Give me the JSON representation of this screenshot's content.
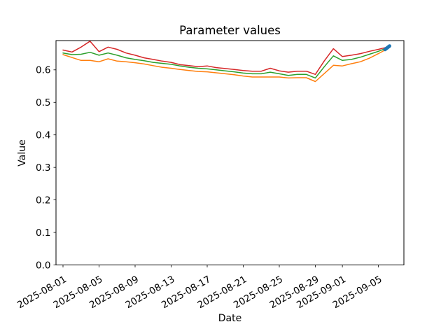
{
  "figure": {
    "background": "#ffffff"
  },
  "chart_data": {
    "type": "line",
    "title": "Parameter values",
    "xlabel": "Date",
    "ylabel": "Value",
    "grid": false,
    "legend": "none",
    "ylim": [
      0.0,
      0.69
    ],
    "y_tick_labels": [
      "0.0",
      "0.1",
      "0.2",
      "0.3",
      "0.4",
      "0.5",
      "0.6"
    ],
    "x_ticks": [
      {
        "day_index": 0,
        "label": "2025-08-01"
      },
      {
        "day_index": 4,
        "label": "2025-08-05"
      },
      {
        "day_index": 8,
        "label": "2025-08-09"
      },
      {
        "day_index": 12,
        "label": "2025-08-13"
      },
      {
        "day_index": 16,
        "label": "2025-08-17"
      },
      {
        "day_index": 20,
        "label": "2025-08-21"
      },
      {
        "day_index": 24,
        "label": "2025-08-25"
      },
      {
        "day_index": 28,
        "label": "2025-08-29"
      },
      {
        "day_index": 31,
        "label": "2025-09-01"
      },
      {
        "day_index": 35,
        "label": "2025-09-05"
      }
    ],
    "x": [
      "2025-08-01",
      "2025-08-02",
      "2025-08-03",
      "2025-08-04",
      "2025-08-05",
      "2025-08-06",
      "2025-08-07",
      "2025-08-08",
      "2025-08-09",
      "2025-08-10",
      "2025-08-11",
      "2025-08-12",
      "2025-08-13",
      "2025-08-14",
      "2025-08-15",
      "2025-08-16",
      "2025-08-17",
      "2025-08-18",
      "2025-08-19",
      "2025-08-20",
      "2025-08-21",
      "2025-08-22",
      "2025-08-23",
      "2025-08-24",
      "2025-08-25",
      "2025-08-26",
      "2025-08-27",
      "2025-08-28",
      "2025-08-29",
      "2025-08-30",
      "2025-08-31",
      "2025-09-01",
      "2025-09-02",
      "2025-09-03",
      "2025-09-04",
      "2025-09-05",
      "2025-09-06"
    ],
    "series": [
      {
        "name": "series-orange",
        "color": "#ff7f0e",
        "values": [
          0.647,
          0.638,
          0.629,
          0.629,
          0.625,
          0.634,
          0.627,
          0.625,
          0.622,
          0.618,
          0.613,
          0.608,
          0.605,
          0.601,
          0.598,
          0.595,
          0.594,
          0.591,
          0.588,
          0.585,
          0.581,
          0.578,
          0.578,
          0.578,
          0.578,
          0.575,
          0.576,
          0.576,
          0.564,
          0.589,
          0.614,
          0.612,
          0.619,
          0.625,
          0.636,
          0.65,
          0.665
        ]
      },
      {
        "name": "series-green",
        "color": "#2ca02c",
        "values": [
          0.652,
          0.647,
          0.648,
          0.654,
          0.645,
          0.652,
          0.645,
          0.637,
          0.632,
          0.628,
          0.623,
          0.62,
          0.617,
          0.612,
          0.608,
          0.605,
          0.603,
          0.6,
          0.597,
          0.594,
          0.59,
          0.588,
          0.588,
          0.593,
          0.588,
          0.583,
          0.586,
          0.586,
          0.575,
          0.61,
          0.643,
          0.629,
          0.632,
          0.639,
          0.648,
          0.657,
          0.668
        ]
      },
      {
        "name": "series-red",
        "color": "#d62728",
        "values": [
          0.661,
          0.655,
          0.67,
          0.688,
          0.656,
          0.67,
          0.663,
          0.652,
          0.645,
          0.637,
          0.632,
          0.627,
          0.623,
          0.616,
          0.613,
          0.61,
          0.612,
          0.607,
          0.604,
          0.601,
          0.598,
          0.596,
          0.596,
          0.605,
          0.597,
          0.593,
          0.596,
          0.596,
          0.586,
          0.628,
          0.665,
          0.641,
          0.645,
          0.65,
          0.657,
          0.663,
          0.67
        ]
      }
    ],
    "end_marker": {
      "color": "#1f77b4",
      "date": "2025-09-06",
      "value": 0.668
    }
  }
}
